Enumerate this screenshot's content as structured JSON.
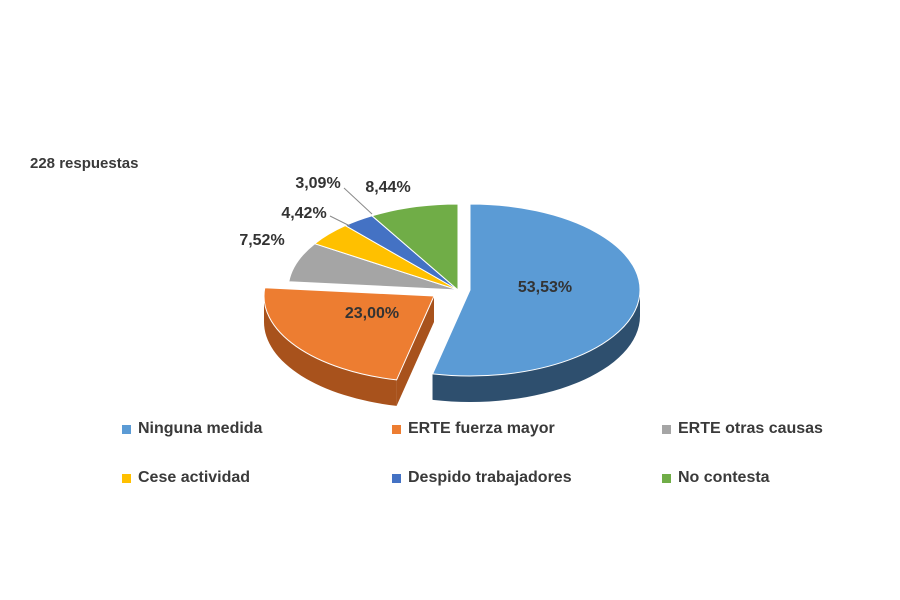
{
  "chart_data": {
    "type": "pie",
    "title": "",
    "subtitle": "228 respuestas",
    "categories": [
      "Ninguna medida",
      "ERTE fuerza mayor",
      "ERTE otras causas",
      "Cese actividad",
      "Despido trabajadores",
      "No contesta"
    ],
    "values": [
      53.53,
      23.0,
      7.52,
      4.42,
      3.09,
      8.44
    ],
    "value_labels": [
      "53,53%",
      "23,00%",
      "7,52%",
      "4,42%",
      "3,09%",
      "8,44%"
    ],
    "colors": [
      "#5b9bd5",
      "#ed7d31",
      "#a5a5a5",
      "#ffc000",
      "#4472c4",
      "#70ad47"
    ],
    "side_colors": [
      "#2e4f6e",
      "#a8521c",
      "#707070",
      "#b98a00",
      "#2a4a85",
      "#4a7a30"
    ],
    "style": "3d-exploded",
    "legend_position": "bottom"
  }
}
